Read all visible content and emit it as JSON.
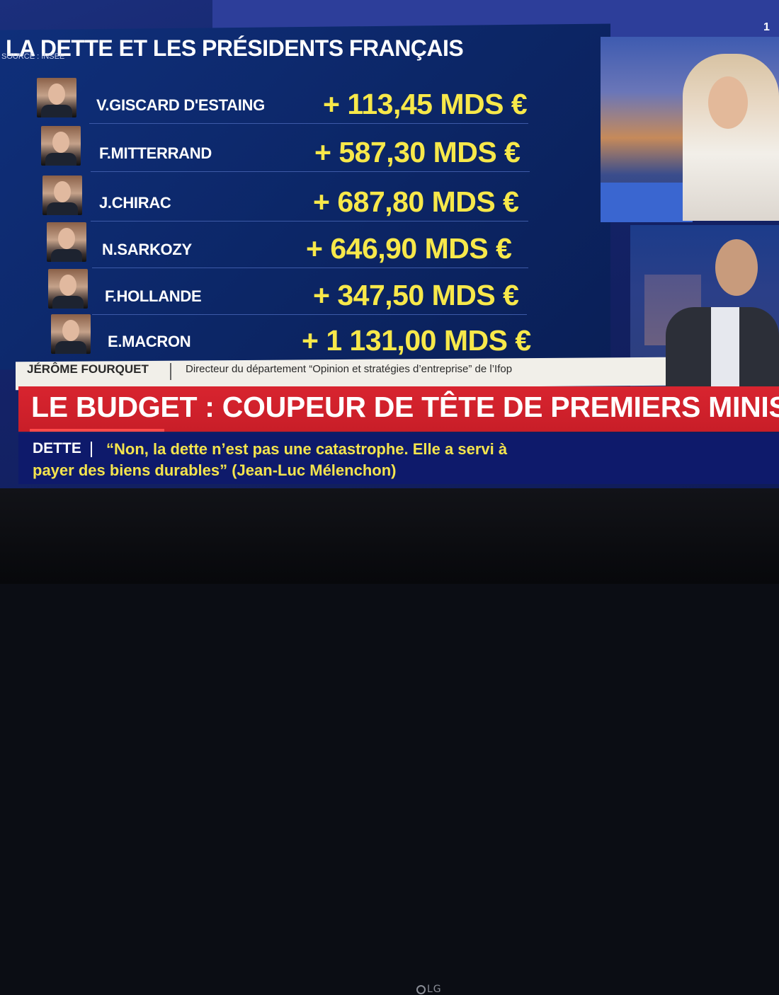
{
  "panel": {
    "title": "LA DETTE ET LES PRÉSIDENTS FRANÇAIS",
    "source": "SOURCE : INSEE"
  },
  "presidents": [
    {
      "name": "V.GISCARD D'ESTAING",
      "value": "+ 113,45 MDS €"
    },
    {
      "name": "F.MITTERRAND",
      "value": "+ 587,30 MDS €"
    },
    {
      "name": "J.CHIRAC",
      "value": "+ 687,80 MDS €"
    },
    {
      "name": "N.SARKOZY",
      "value": "+ 646,90 MDS €"
    },
    {
      "name": "F.HOLLANDE",
      "value": "+ 347,50 MDS €"
    },
    {
      "name": "E.MACRON",
      "value": "+ 1 131,00 MDS €"
    }
  ],
  "speaker": {
    "name": "JÉRÔME FOURQUET",
    "role": "Directeur du département “Opinion et stratégies d’entreprise” de l’Ifop"
  },
  "headline": "LE BUDGET : COUPEUR DE TÊTE DE PREMIERS MINISTR",
  "ticker": {
    "tag": "DETTE",
    "line1": "“Non, la dette n’est pas une catastrophe. Elle a servi à",
    "line2": "payer des biens durables” (Jean-Luc Mélenchon)"
  },
  "channel_badge": "1",
  "tv_brand": "LG",
  "colors": {
    "value_yellow": "#f7e84a",
    "headline_red": "#d8242f",
    "panel_blue": "#0f2f7a"
  }
}
